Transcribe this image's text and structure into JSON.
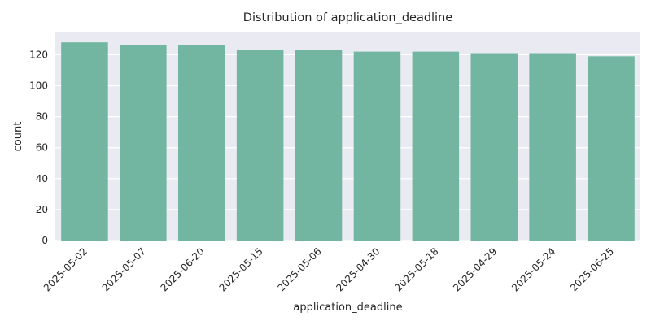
{
  "chart_data": {
    "type": "bar",
    "title": "Distribution of application_deadline",
    "xlabel": "application_deadline",
    "ylabel": "count",
    "categories": [
      "2025-05-02",
      "2025-05-07",
      "2025-06-20",
      "2025-05-15",
      "2025-05-06",
      "2025-04-30",
      "2025-05-18",
      "2025-04-29",
      "2025-05-24",
      "2025-06-25"
    ],
    "values": [
      128,
      126,
      126,
      123,
      123,
      122,
      122,
      121,
      121,
      119
    ],
    "ylim": [
      0,
      134.4
    ],
    "yticks": [
      0,
      20,
      40,
      60,
      80,
      100,
      120
    ],
    "grid": true,
    "colors": {
      "bar": "#72b6a1",
      "plot_bg": "#eaeaf2",
      "grid": "#ffffff"
    }
  }
}
